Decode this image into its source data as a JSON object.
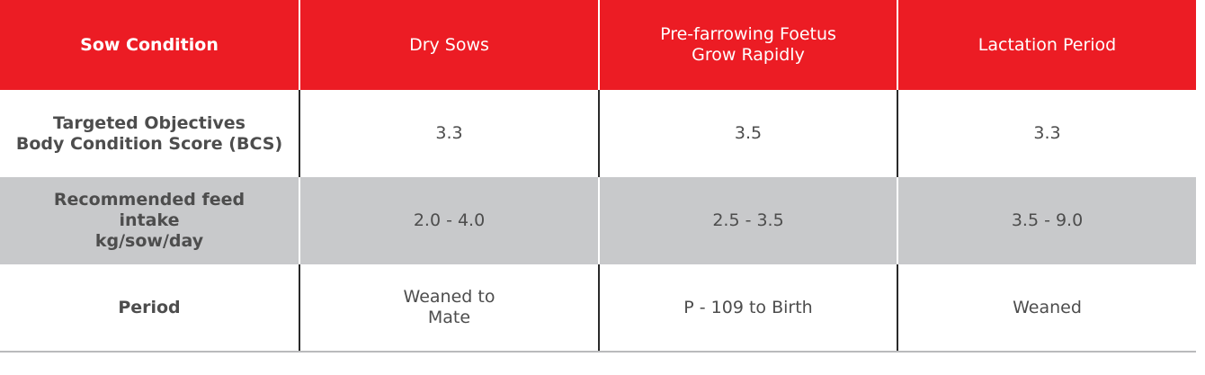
{
  "table": {
    "headers": [
      "Sow Condition",
      "Dry Sows",
      "Pre-farrowing Foetus\nGrow Rapidly",
      "Lactation Period"
    ],
    "rows": [
      {
        "label": "Targeted Objectives\nBody Condition Score (BCS)",
        "cells": [
          "3.3",
          "3.5",
          "3.3"
        ]
      },
      {
        "label": "Recommended feed\nintake\nkg/sow/day",
        "cells": [
          "2.0 - 4.0",
          "2.5 - 3.5",
          "3.5 - 9.0"
        ]
      },
      {
        "label": "Period",
        "cells": [
          "Weaned to\nMate",
          "P - 109 to Birth",
          "Weaned"
        ]
      }
    ]
  },
  "colors": {
    "header_bg": "#ec1c24",
    "stripe_bg": "#c8c9cb",
    "text": "#4d4d4d"
  }
}
